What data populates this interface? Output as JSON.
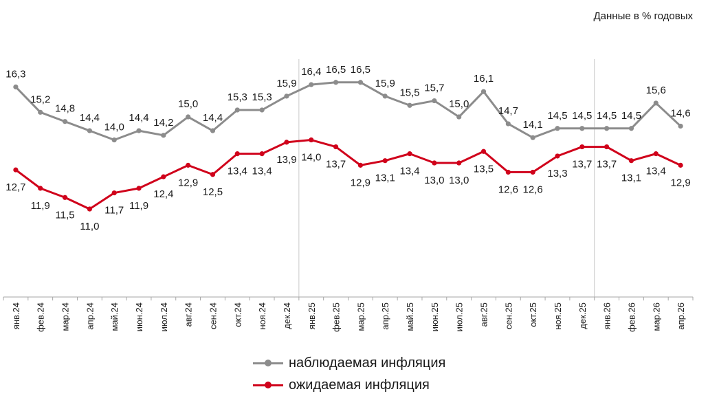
{
  "note": "Данные в % годовых",
  "chart_data": {
    "type": "line",
    "x": [
      "янв.24",
      "фев.24",
      "мар.24",
      "апр.24",
      "май.24",
      "июн.24",
      "июл.24",
      "авг.24",
      "сен.24",
      "окт.24",
      "ноя.24",
      "дек.24",
      "янв.25",
      "фев.25",
      "мар.25",
      "апр.25",
      "май.25",
      "июн.25",
      "июл.25",
      "авг.25",
      "сен.25",
      "окт.25",
      "ноя.25",
      "дек.25",
      "янв.26",
      "фев.26",
      "мар.26",
      "апр.26"
    ],
    "series": [
      {
        "name": "наблюдаемая инфляция",
        "color": "#8c8c8c",
        "values": [
          16.3,
          15.2,
          14.8,
          14.4,
          14.0,
          14.4,
          14.2,
          15.0,
          14.4,
          15.3,
          15.3,
          15.9,
          16.4,
          16.5,
          16.5,
          15.9,
          15.5,
          15.7,
          15.0,
          16.1,
          14.7,
          14.1,
          14.5,
          14.5,
          14.5,
          14.5,
          15.6,
          14.6
        ]
      },
      {
        "name": "ожидаемая инфляция",
        "color": "#d0021b",
        "values": [
          12.7,
          11.9,
          11.5,
          11.0,
          11.7,
          11.9,
          12.4,
          12.9,
          12.5,
          13.4,
          13.4,
          13.9,
          14.0,
          13.7,
          12.9,
          13.1,
          13.4,
          13.0,
          13.0,
          13.5,
          12.6,
          12.6,
          13.3,
          13.7,
          13.7,
          13.1,
          13.4,
          12.9
        ]
      }
    ],
    "year_separators_after": [
      "дек.24",
      "дек.25"
    ],
    "grid": false,
    "legend": "bottom"
  }
}
